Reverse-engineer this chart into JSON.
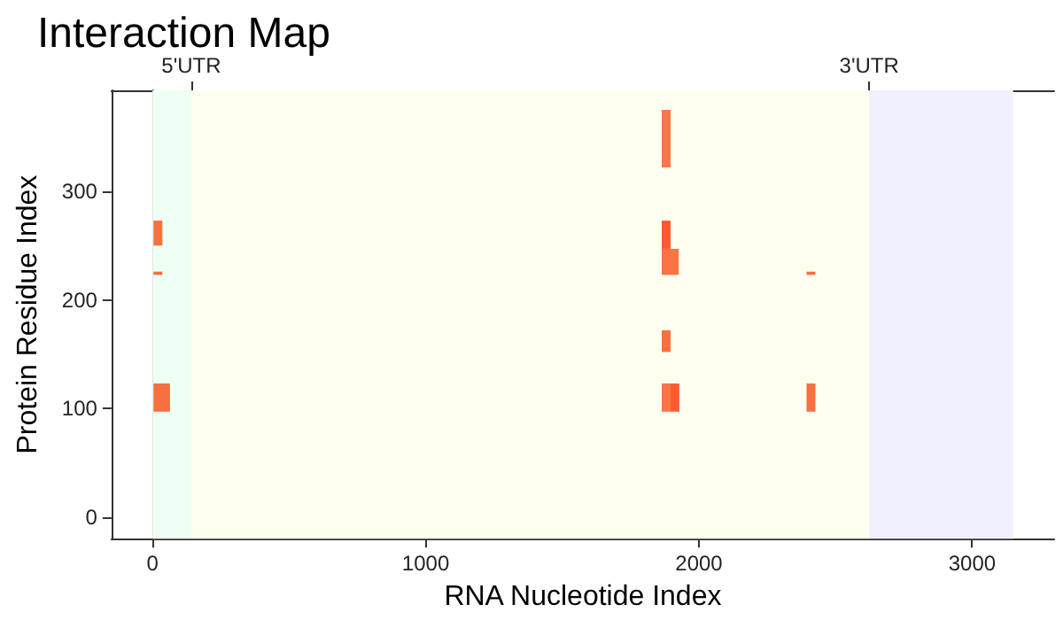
{
  "chart_data": {
    "type": "bar",
    "title": "Interaction Map",
    "xlabel": "RNA Nucleotide Index",
    "ylabel": "Protein Residue Index",
    "series": [
      {
        "x": [
          20,
          48,
          1880,
          1912,
          2410
        ],
        "base": [
          97,
          97,
          97,
          97,
          97
        ],
        "values": [
          26,
          26,
          26,
          26,
          26
        ],
        "colors": [
          "#f7703f",
          "#f7703f",
          "#fa7445",
          "#ff5a30",
          "#f7703f"
        ]
      },
      {
        "x": [
          20,
          1880,
          1910,
          2410
        ],
        "base": [
          223,
          223,
          223,
          223
        ],
        "values": [
          3,
          24,
          24,
          3
        ],
        "colors": [
          "#f7703f",
          "#fa7445",
          "#fa7445",
          "#f7703f"
        ]
      },
      {
        "x": [
          20,
          1880
        ],
        "base": [
          250,
          247
        ],
        "values": [
          23,
          26
        ],
        "colors": [
          "#f7703f",
          "#ff5a30"
        ]
      },
      {
        "x": [
          1880,
          1880
        ],
        "base": [
          152,
          322
        ],
        "values": [
          20,
          53
        ],
        "colors": [
          "#f7703f",
          "#f7764a"
        ]
      }
    ],
    "xlim": [
      -150,
      3300
    ],
    "xticks": [
      0,
      1000,
      2000,
      3000
    ],
    "ylim": [
      -20,
      393
    ],
    "yticks": [
      0,
      100,
      200,
      300
    ],
    "annotations": [
      "5'UTR",
      "3'UTR"
    ],
    "bands": [
      {
        "axis": "x",
        "from": 0,
        "to": 142,
        "color": "#f0fff3"
      },
      {
        "axis": "x",
        "from": 142,
        "to": 2623,
        "color": "#fffff0"
      },
      {
        "axis": "x",
        "from": 2623,
        "to": 3150,
        "color": "#f0f0fe"
      }
    ]
  }
}
